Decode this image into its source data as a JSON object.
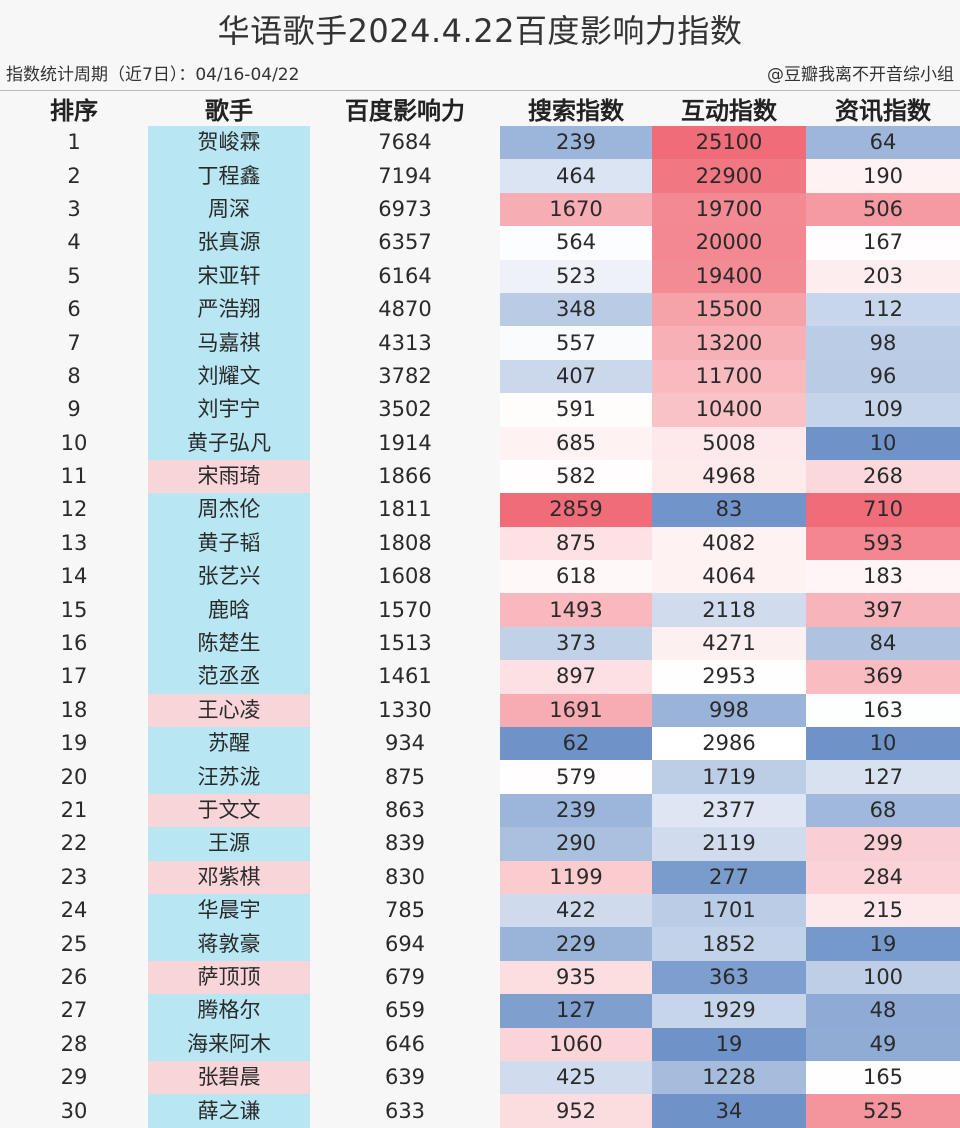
{
  "title": "华语歌手2024.4.22百度影响力指数",
  "period": "指数统计周期（近7日）：04/16-04/22",
  "credit": "@豆瓣我离不开音综小组",
  "colors": {
    "male_name_bg": "#b8e6f2",
    "female_name_bg": "#f8d5d8",
    "high": "#f06c78",
    "mid": "#ffffff",
    "low": "#6e93c9"
  },
  "chart_data": {
    "type": "table",
    "columns": [
      "排序",
      "歌手",
      "百度影响力",
      "搜索指数",
      "互动指数",
      "资讯指数"
    ],
    "rows": [
      {
        "rank": "1",
        "name": "贺峻霖",
        "name_tone": "blue",
        "baidu": 7684,
        "search": 239,
        "interaction": 25100,
        "news": 64
      },
      {
        "rank": "2",
        "name": "丁程鑫",
        "name_tone": "blue",
        "baidu": 7194,
        "search": 464,
        "interaction": 22900,
        "news": 190
      },
      {
        "rank": "3",
        "name": "周深",
        "name_tone": "blue",
        "baidu": 6973,
        "search": 1670,
        "interaction": 19700,
        "news": 506
      },
      {
        "rank": "4",
        "name": "张真源",
        "name_tone": "blue",
        "baidu": 6357,
        "search": 564,
        "interaction": 20000,
        "news": 167
      },
      {
        "rank": "5",
        "name": "宋亚轩",
        "name_tone": "blue",
        "baidu": 6164,
        "search": 523,
        "interaction": 19400,
        "news": 203
      },
      {
        "rank": "6",
        "name": "严浩翔",
        "name_tone": "blue",
        "baidu": 4870,
        "search": 348,
        "interaction": 15500,
        "news": 112
      },
      {
        "rank": "7",
        "name": "马嘉祺",
        "name_tone": "blue",
        "baidu": 4313,
        "search": 557,
        "interaction": 13200,
        "news": 98
      },
      {
        "rank": "8",
        "name": "刘耀文",
        "name_tone": "blue",
        "baidu": 3782,
        "search": 407,
        "interaction": 11700,
        "news": 96
      },
      {
        "rank": "9",
        "name": "刘宇宁",
        "name_tone": "blue",
        "baidu": 3502,
        "search": 591,
        "interaction": 10400,
        "news": 109
      },
      {
        "rank": "10",
        "name": "黄子弘凡",
        "name_tone": "blue",
        "baidu": 1914,
        "search": 685,
        "interaction": 5008,
        "news": 10
      },
      {
        "rank": "11",
        "name": "宋雨琦",
        "name_tone": "pink",
        "baidu": 1866,
        "search": 582,
        "interaction": 4968,
        "news": 268
      },
      {
        "rank": "12",
        "name": "周杰伦",
        "name_tone": "blue",
        "baidu": 1811,
        "search": 2859,
        "interaction": 83,
        "news": 710
      },
      {
        "rank": "13",
        "name": "黄子韬",
        "name_tone": "blue",
        "baidu": 1808,
        "search": 875,
        "interaction": 4082,
        "news": 593
      },
      {
        "rank": "14",
        "name": "张艺兴",
        "name_tone": "blue",
        "baidu": 1608,
        "search": 618,
        "interaction": 4064,
        "news": 183
      },
      {
        "rank": "15",
        "name": "鹿晗",
        "name_tone": "blue",
        "baidu": 1570,
        "search": 1493,
        "interaction": 2118,
        "news": 397
      },
      {
        "rank": "16",
        "name": "陈楚生",
        "name_tone": "blue",
        "baidu": 1513,
        "search": 373,
        "interaction": 4271,
        "news": 84
      },
      {
        "rank": "17",
        "name": "范丞丞",
        "name_tone": "blue",
        "baidu": 1461,
        "search": 897,
        "interaction": 2953,
        "news": 369
      },
      {
        "rank": "18",
        "name": "王心凌",
        "name_tone": "pink",
        "baidu": 1330,
        "search": 1691,
        "interaction": 998,
        "news": 163
      },
      {
        "rank": "19",
        "name": "苏醒",
        "name_tone": "blue",
        "baidu": 934,
        "search": 62,
        "interaction": 2986,
        "news": 10
      },
      {
        "rank": "20",
        "name": "汪苏泷",
        "name_tone": "blue",
        "baidu": 875,
        "search": 579,
        "interaction": 1719,
        "news": 127
      },
      {
        "rank": "21",
        "name": "于文文",
        "name_tone": "pink",
        "baidu": 863,
        "search": 239,
        "interaction": 2377,
        "news": 68
      },
      {
        "rank": "22",
        "name": "王源",
        "name_tone": "blue",
        "baidu": 839,
        "search": 290,
        "interaction": 2119,
        "news": 299
      },
      {
        "rank": "23",
        "name": "邓紫棋",
        "name_tone": "pink",
        "baidu": 830,
        "search": 1199,
        "interaction": 277,
        "news": 284
      },
      {
        "rank": "24",
        "name": "华晨宇",
        "name_tone": "blue",
        "baidu": 785,
        "search": 422,
        "interaction": 1701,
        "news": 215
      },
      {
        "rank": "25",
        "name": "蒋敦豪",
        "name_tone": "blue",
        "baidu": 694,
        "search": 229,
        "interaction": 1852,
        "news": 19
      },
      {
        "rank": "26",
        "name": "萨顶顶",
        "name_tone": "pink",
        "baidu": 679,
        "search": 935,
        "interaction": 363,
        "news": 100
      },
      {
        "rank": "27",
        "name": "腾格尔",
        "name_tone": "blue",
        "baidu": 659,
        "search": 127,
        "interaction": 1929,
        "news": 48
      },
      {
        "rank": "28",
        "name": "海来阿木",
        "name_tone": "blue",
        "baidu": 646,
        "search": 1060,
        "interaction": 19,
        "news": 49
      },
      {
        "rank": "29",
        "name": "张碧晨",
        "name_tone": "pink",
        "baidu": 639,
        "search": 425,
        "interaction": 1228,
        "news": 165
      },
      {
        "rank": "30",
        "name": "薛之谦",
        "name_tone": "blue",
        "baidu": 633,
        "search": 952,
        "interaction": 34,
        "news": 525
      }
    ]
  }
}
